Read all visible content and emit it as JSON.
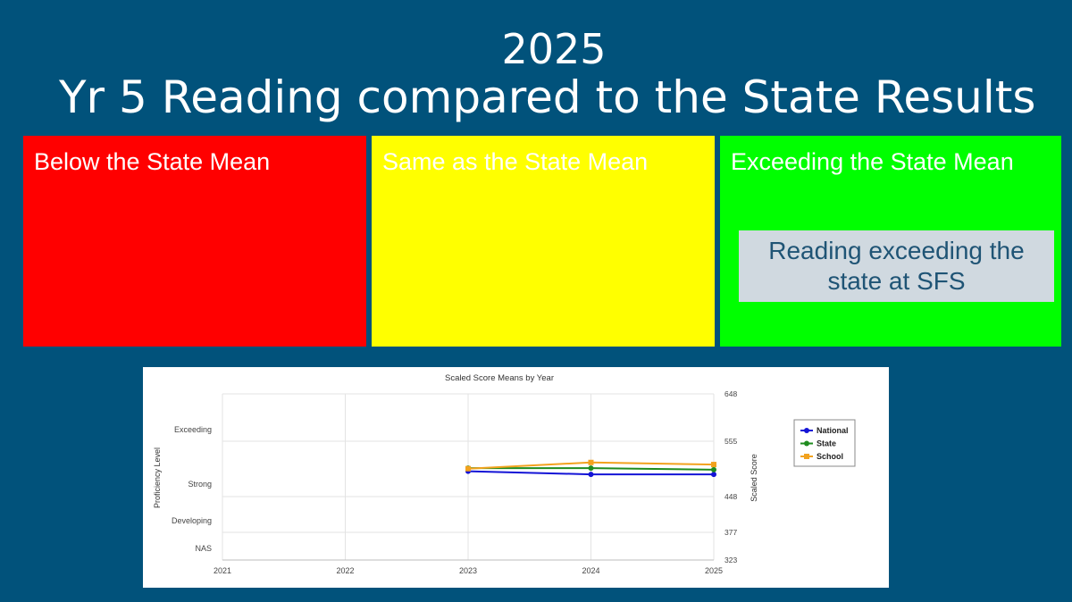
{
  "slide": {
    "year": "2025",
    "title": "Yr 5 Reading compared to the State Results"
  },
  "panels": {
    "below": {
      "label": "Below the State Mean",
      "color": "#ff0000"
    },
    "same": {
      "label": "Same as the State Mean",
      "color": "#ffff00"
    },
    "exceed": {
      "label": "Exceeding the State Mean",
      "color": "#00ff00",
      "note": "Reading exceeding the state at SFS"
    }
  },
  "chart_data": {
    "type": "line",
    "title": "Scaled Score Means by Year",
    "xlabel": "",
    "ylabel_left": "Proficiency Level",
    "ylabel_right": "Scaled Score",
    "x": [
      "2021",
      "2022",
      "2023",
      "2024",
      "2025"
    ],
    "right_ticks": [
      648,
      555,
      448,
      377,
      323
    ],
    "ylim": [
      323,
      648
    ],
    "proficiency_bands": [
      {
        "label": "Exceeding",
        "from": 555,
        "to": 648
      },
      {
        "label": "Strong",
        "from": 448,
        "to": 555
      },
      {
        "label": "Developing",
        "from": 377,
        "to": 448
      },
      {
        "label": "NAS",
        "from": 323,
        "to": 377
      }
    ],
    "series": [
      {
        "name": "National",
        "color": "#1414d6",
        "marker": "circle",
        "values": [
          null,
          null,
          497,
          491,
          491
        ]
      },
      {
        "name": "State",
        "color": "#1f8c1f",
        "marker": "circle",
        "values": [
          null,
          null,
          503,
          503,
          500
        ]
      },
      {
        "name": "School",
        "color": "#f2a21e",
        "marker": "square",
        "values": [
          null,
          null,
          502,
          514,
          510
        ]
      }
    ],
    "grid": true,
    "legend": "right"
  }
}
